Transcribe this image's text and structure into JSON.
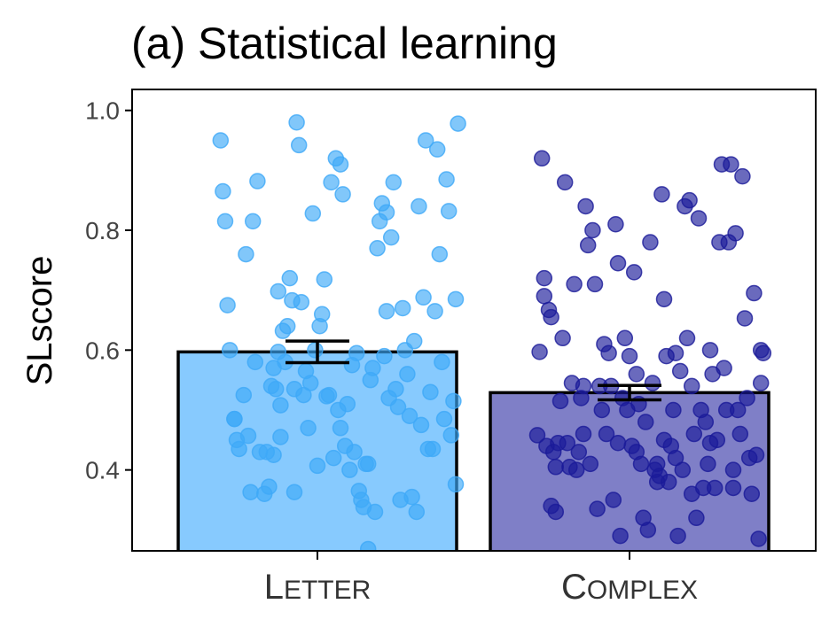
{
  "chart_data": {
    "type": "bar",
    "title": "(a) Statistical learning",
    "ylabel": "SLscore",
    "xlabel": "",
    "ylim": [
      0.265,
      1.035
    ],
    "yticks": [
      0.4,
      0.6,
      0.8,
      1.0
    ],
    "ytick_labels": [
      "0.4",
      "0.6",
      "0.8",
      "1.0"
    ],
    "grid": false,
    "categories": [
      "Letter",
      "Complex"
    ],
    "category_labels_smallcaps": [
      {
        "first": "L",
        "rest": "ETTER"
      },
      {
        "first": "C",
        "rest": "OMPLEX"
      }
    ],
    "values": [
      0.597,
      0.529
    ],
    "errors": [
      0.018,
      0.012
    ],
    "colors": {
      "letter_bar": "#87cafe",
      "letter_points": "#3ea9f7",
      "complex_bar": "#7f7fc7",
      "complex_points": "#1a1a99"
    },
    "points": {
      "Letter": [
        [
          -0.42,
          0.95
        ],
        [
          -0.41,
          0.865
        ],
        [
          -0.4,
          0.815
        ],
        [
          -0.39,
          0.675
        ],
        [
          -0.38,
          0.6
        ],
        [
          -0.36,
          0.485
        ],
        [
          -0.35,
          0.45
        ],
        [
          -0.34,
          0.435
        ],
        [
          -0.32,
          0.525
        ],
        [
          -0.31,
          0.76
        ],
        [
          -0.3,
          0.457
        ],
        [
          -0.29,
          0.363
        ],
        [
          -0.28,
          0.815
        ],
        [
          -0.27,
          0.58
        ],
        [
          -0.26,
          0.882
        ],
        [
          -0.25,
          0.43
        ],
        [
          -0.23,
          0.36
        ],
        [
          -0.22,
          0.43
        ],
        [
          -0.21,
          0.372
        ],
        [
          -0.2,
          0.54
        ],
        [
          -0.19,
          0.425
        ],
        [
          -0.19,
          0.57
        ],
        [
          -0.18,
          0.535
        ],
        [
          -0.17,
          0.597
        ],
        [
          -0.17,
          0.698
        ],
        [
          -0.16,
          0.508
        ],
        [
          -0.16,
          0.455
        ],
        [
          -0.15,
          0.632
        ],
        [
          -0.14,
          0.58
        ],
        [
          -0.13,
          0.64
        ],
        [
          -0.12,
          0.72
        ],
        [
          -0.11,
          0.683
        ],
        [
          -0.1,
          0.363
        ],
        [
          -0.1,
          0.535
        ],
        [
          -0.09,
          0.98
        ],
        [
          -0.08,
          0.942
        ],
        [
          -0.07,
          0.68
        ],
        [
          -0.06,
          0.525
        ],
        [
          -0.05,
          0.565
        ],
        [
          -0.04,
          0.47
        ],
        [
          -0.03,
          0.545
        ],
        [
          -0.02,
          0.828
        ],
        [
          -0.01,
          0.6
        ],
        [
          0.0,
          0.407
        ],
        [
          0.01,
          0.64
        ],
        [
          0.02,
          0.66
        ],
        [
          0.03,
          0.718
        ],
        [
          0.04,
          0.523
        ],
        [
          0.05,
          0.525
        ],
        [
          0.06,
          0.88
        ],
        [
          0.07,
          0.42
        ],
        [
          0.08,
          0.92
        ],
        [
          0.09,
          0.5
        ],
        [
          0.1,
          0.91
        ],
        [
          0.1,
          0.47
        ],
        [
          0.11,
          0.86
        ],
        [
          0.12,
          0.44
        ],
        [
          0.13,
          0.51
        ],
        [
          0.14,
          0.4
        ],
        [
          0.15,
          0.575
        ],
        [
          0.16,
          0.43
        ],
        [
          0.17,
          0.595
        ],
        [
          0.18,
          0.365
        ],
        [
          0.19,
          0.35
        ],
        [
          0.2,
          0.338
        ],
        [
          0.21,
          0.41
        ],
        [
          0.22,
          0.41
        ],
        [
          0.23,
          0.55
        ],
        [
          0.24,
          0.57
        ],
        [
          0.25,
          0.33
        ],
        [
          0.26,
          0.77
        ],
        [
          0.27,
          0.815
        ],
        [
          0.28,
          0.845
        ],
        [
          0.29,
          0.59
        ],
        [
          0.3,
          0.83
        ],
        [
          0.3,
          0.665
        ],
        [
          0.31,
          0.52
        ],
        [
          0.32,
          0.788
        ],
        [
          0.33,
          0.88
        ],
        [
          0.34,
          0.535
        ],
        [
          0.35,
          0.505
        ],
        [
          0.36,
          0.35
        ],
        [
          0.37,
          0.67
        ],
        [
          0.38,
          0.6
        ],
        [
          0.39,
          0.56
        ],
        [
          0.4,
          0.49
        ],
        [
          0.41,
          0.355
        ],
        [
          0.42,
          0.615
        ],
        [
          0.43,
          0.33
        ],
        [
          0.44,
          0.84
        ],
        [
          0.45,
          0.475
        ],
        [
          0.46,
          0.688
        ],
        [
          0.47,
          0.95
        ],
        [
          0.48,
          0.435
        ],
        [
          0.49,
          0.53
        ],
        [
          0.5,
          0.435
        ],
        [
          0.51,
          0.665
        ],
        [
          0.52,
          0.935
        ],
        [
          0.53,
          0.76
        ],
        [
          0.54,
          0.58
        ],
        [
          0.55,
          0.485
        ],
        [
          0.56,
          0.885
        ],
        [
          0.57,
          0.832
        ],
        [
          0.58,
          0.458
        ],
        [
          0.59,
          0.515
        ],
        [
          0.6,
          0.685
        ],
        [
          0.6,
          0.376
        ],
        [
          0.61,
          0.978
        ],
        [
          -0.36,
          0.485
        ],
        [
          0.22,
          0.268
        ]
      ],
      "Complex": [
        [
          -0.4,
          0.458
        ],
        [
          -0.39,
          0.597
        ],
        [
          -0.38,
          0.92
        ],
        [
          -0.37,
          0.72
        ],
        [
          -0.37,
          0.69
        ],
        [
          -0.36,
          0.44
        ],
        [
          -0.35,
          0.667
        ],
        [
          -0.34,
          0.655
        ],
        [
          -0.34,
          0.34
        ],
        [
          -0.33,
          0.43
        ],
        [
          -0.32,
          0.405
        ],
        [
          -0.31,
          0.445
        ],
        [
          -0.3,
          0.515
        ],
        [
          -0.29,
          0.62
        ],
        [
          -0.28,
          0.88
        ],
        [
          -0.27,
          0.445
        ],
        [
          -0.26,
          0.405
        ],
        [
          -0.25,
          0.545
        ],
        [
          -0.24,
          0.71
        ],
        [
          -0.23,
          0.4
        ],
        [
          -0.22,
          0.43
        ],
        [
          -0.21,
          0.52
        ],
        [
          -0.2,
          0.46
        ],
        [
          -0.19,
          0.84
        ],
        [
          -0.18,
          0.775
        ],
        [
          -0.17,
          0.41
        ],
        [
          -0.16,
          0.8
        ],
        [
          -0.15,
          0.71
        ],
        [
          -0.14,
          0.335
        ],
        [
          -0.13,
          0.54
        ],
        [
          -0.12,
          0.5
        ],
        [
          -0.11,
          0.61
        ],
        [
          -0.1,
          0.46
        ],
        [
          -0.09,
          0.595
        ],
        [
          -0.08,
          0.54
        ],
        [
          -0.07,
          0.35
        ],
        [
          -0.06,
          0.81
        ],
        [
          -0.05,
          0.745
        ],
        [
          -0.04,
          0.29
        ],
        [
          -0.03,
          0.52
        ],
        [
          -0.02,
          0.62
        ],
        [
          -0.01,
          0.5
        ],
        [
          0.0,
          0.59
        ],
        [
          0.01,
          0.44
        ],
        [
          0.02,
          0.73
        ],
        [
          0.03,
          0.56
        ],
        [
          0.04,
          0.51
        ],
        [
          0.05,
          0.41
        ],
        [
          0.06,
          0.32
        ],
        [
          0.07,
          0.48
        ],
        [
          0.08,
          0.3
        ],
        [
          0.09,
          0.78
        ],
        [
          0.1,
          0.545
        ],
        [
          0.11,
          0.4
        ],
        [
          0.12,
          0.38
        ],
        [
          0.13,
          0.39
        ],
        [
          0.14,
          0.86
        ],
        [
          0.15,
          0.45
        ],
        [
          0.16,
          0.59
        ],
        [
          0.17,
          0.38
        ],
        [
          0.18,
          0.44
        ],
        [
          0.19,
          0.5
        ],
        [
          0.2,
          0.42
        ],
        [
          0.21,
          0.29
        ],
        [
          0.22,
          0.565
        ],
        [
          0.23,
          0.4
        ],
        [
          0.24,
          0.84
        ],
        [
          0.25,
          0.62
        ],
        [
          0.26,
          0.85
        ],
        [
          0.27,
          0.36
        ],
        [
          0.28,
          0.46
        ],
        [
          0.29,
          0.32
        ],
        [
          0.3,
          0.82
        ],
        [
          0.31,
          0.5
        ],
        [
          0.32,
          0.37
        ],
        [
          0.33,
          0.48
        ],
        [
          0.34,
          0.41
        ],
        [
          0.35,
          0.6
        ],
        [
          0.36,
          0.56
        ],
        [
          0.37,
          0.37
        ],
        [
          0.38,
          0.45
        ],
        [
          0.39,
          0.78
        ],
        [
          0.4,
          0.91
        ],
        [
          0.41,
          0.57
        ],
        [
          0.42,
          0.5
        ],
        [
          0.43,
          0.78
        ],
        [
          0.44,
          0.91
        ],
        [
          0.45,
          0.4
        ],
        [
          0.46,
          0.795
        ],
        [
          0.47,
          0.5
        ],
        [
          0.48,
          0.46
        ],
        [
          0.49,
          0.89
        ],
        [
          0.5,
          0.653
        ],
        [
          0.51,
          0.52
        ],
        [
          0.52,
          0.42
        ],
        [
          0.53,
          0.36
        ],
        [
          0.54,
          0.695
        ],
        [
          0.55,
          0.425
        ],
        [
          0.56,
          0.285
        ],
        [
          0.57,
          0.545
        ],
        [
          0.57,
          0.6
        ],
        [
          0.58,
          0.595
        ],
        [
          -0.05,
          0.445
        ],
        [
          0.03,
          0.43
        ],
        [
          0.12,
          0.41
        ],
        [
          0.2,
          0.595
        ],
        [
          0.27,
          0.54
        ],
        [
          0.35,
          0.445
        ],
        [
          -0.2,
          0.54
        ],
        [
          -0.32,
          0.33
        ],
        [
          0.45,
          0.37
        ],
        [
          0.15,
          0.685
        ]
      ]
    }
  }
}
